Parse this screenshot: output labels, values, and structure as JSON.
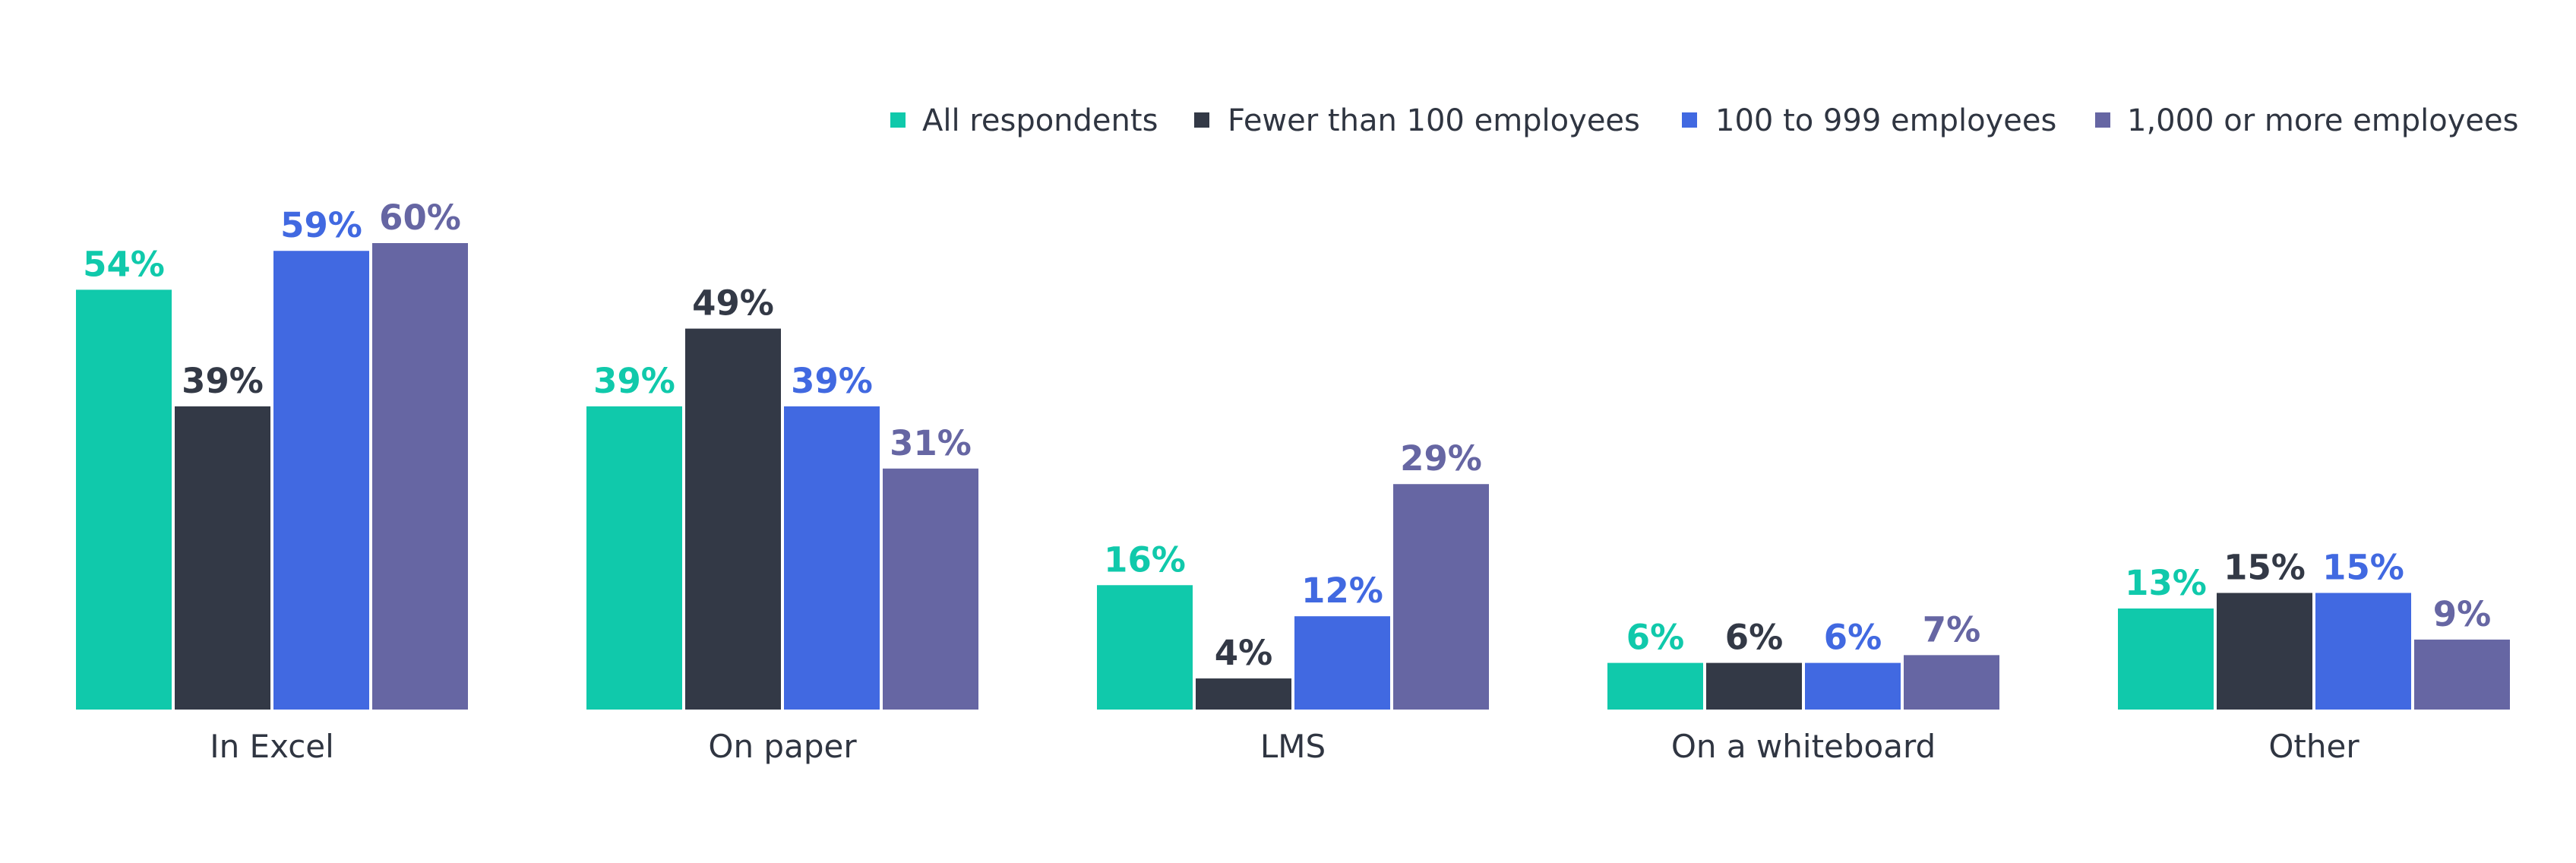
{
  "chart_data": {
    "type": "bar",
    "categories": [
      "In Excel",
      "On paper",
      "LMS",
      "On a whiteboard",
      "Other"
    ],
    "series": [
      {
        "name": "All respondents",
        "values": [
          54,
          39,
          16,
          6,
          13
        ],
        "color": "#10c9ab"
      },
      {
        "name": "Fewer than 100 employees",
        "values": [
          39,
          49,
          4,
          6,
          15
        ],
        "color": "#333946"
      },
      {
        "name": "100 to 999 employees",
        "values": [
          59,
          39,
          12,
          6,
          15
        ],
        "color": "#4169e1"
      },
      {
        "name": "1,000 or more employees",
        "values": [
          60,
          31,
          29,
          7,
          9
        ],
        "color": "#6666a3"
      }
    ],
    "value_suffix": "%",
    "ylim": [
      0,
      60
    ],
    "grid": false,
    "legend_position": "top-right",
    "title": "",
    "xlabel": "",
    "ylabel": ""
  }
}
